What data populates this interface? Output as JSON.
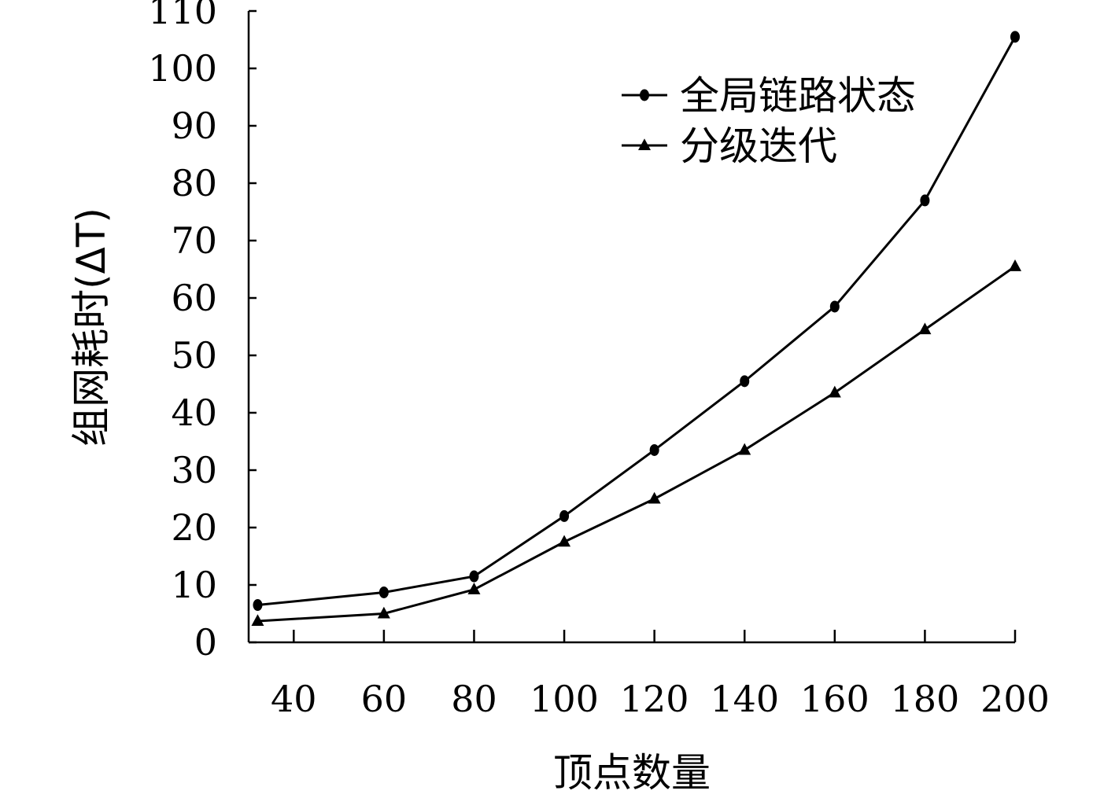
{
  "chart_data": {
    "type": "line",
    "title": "",
    "xlabel": "顶点数量",
    "ylabel": "组网耗时(ΔT)",
    "xlim": [
      30,
      200
    ],
    "ylim": [
      0,
      110
    ],
    "x_ticks": [
      40,
      60,
      80,
      100,
      120,
      140,
      160,
      180,
      200
    ],
    "y_ticks": [
      0,
      10,
      20,
      30,
      40,
      50,
      60,
      70,
      80,
      90,
      100,
      110
    ],
    "grid": false,
    "legend_position": "top-right",
    "series": [
      {
        "name": "全局链路状态",
        "marker": "circle",
        "x": [
          32,
          60,
          80,
          100,
          120,
          140,
          160,
          180,
          200
        ],
        "y": [
          6.5,
          8.7,
          11.5,
          22,
          33.5,
          45.5,
          58.5,
          77,
          105.5
        ]
      },
      {
        "name": "分级迭代",
        "marker": "triangle",
        "x": [
          32,
          60,
          80,
          100,
          120,
          140,
          160,
          180,
          200
        ],
        "y": [
          3.7,
          5,
          9.2,
          17.5,
          25,
          33.5,
          43.5,
          54.5,
          65.5
        ]
      }
    ]
  }
}
